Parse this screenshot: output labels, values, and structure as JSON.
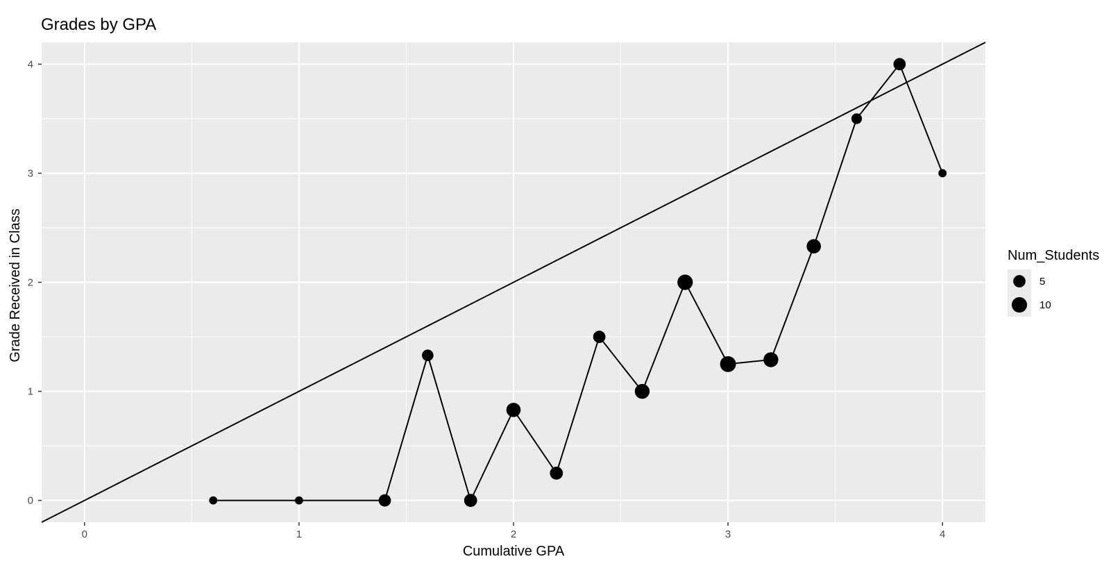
{
  "chart_data": {
    "type": "scatter",
    "title": "Grades by GPA",
    "xlabel": "Cumulative GPA",
    "ylabel": "Grade Received in Class",
    "xlim": [
      -0.2,
      4.2
    ],
    "ylim": [
      -0.2,
      4.2
    ],
    "x_ticks": [
      0,
      1,
      2,
      3,
      4
    ],
    "y_ticks": [
      0,
      1,
      2,
      3,
      4
    ],
    "grid": true,
    "background": "#ebebeb",
    "point_color": "#000000",
    "series": [
      {
        "points": [
          {
            "x": 0.6,
            "y": 0,
            "num_students": 1
          },
          {
            "x": 1.0,
            "y": 0,
            "num_students": 1
          },
          {
            "x": 1.4,
            "y": 0,
            "num_students": 5
          },
          {
            "x": 1.6,
            "y": 1.33,
            "num_students": 4
          },
          {
            "x": 1.8,
            "y": 0,
            "num_students": 6
          },
          {
            "x": 2.0,
            "y": 0.83,
            "num_students": 8
          },
          {
            "x": 2.2,
            "y": 0.25,
            "num_students": 6
          },
          {
            "x": 2.4,
            "y": 1.5,
            "num_students": 5
          },
          {
            "x": 2.6,
            "y": 1.0,
            "num_students": 9
          },
          {
            "x": 2.8,
            "y": 2.0,
            "num_students": 10
          },
          {
            "x": 3.0,
            "y": 1.25,
            "num_students": 11
          },
          {
            "x": 3.2,
            "y": 1.29,
            "num_students": 9
          },
          {
            "x": 3.4,
            "y": 2.33,
            "num_students": 8
          },
          {
            "x": 3.6,
            "y": 3.5,
            "num_students": 3
          },
          {
            "x": 3.8,
            "y": 4.0,
            "num_students": 5
          },
          {
            "x": 4.0,
            "y": 3.0,
            "num_students": 1
          }
        ]
      }
    ],
    "reference_line": {
      "slope": 1,
      "intercept": 0
    },
    "legend": {
      "title": "Num_Students",
      "position": "right",
      "entries": [
        {
          "label": "5",
          "value": 5
        },
        {
          "label": "10",
          "value": 10
        }
      ]
    }
  }
}
